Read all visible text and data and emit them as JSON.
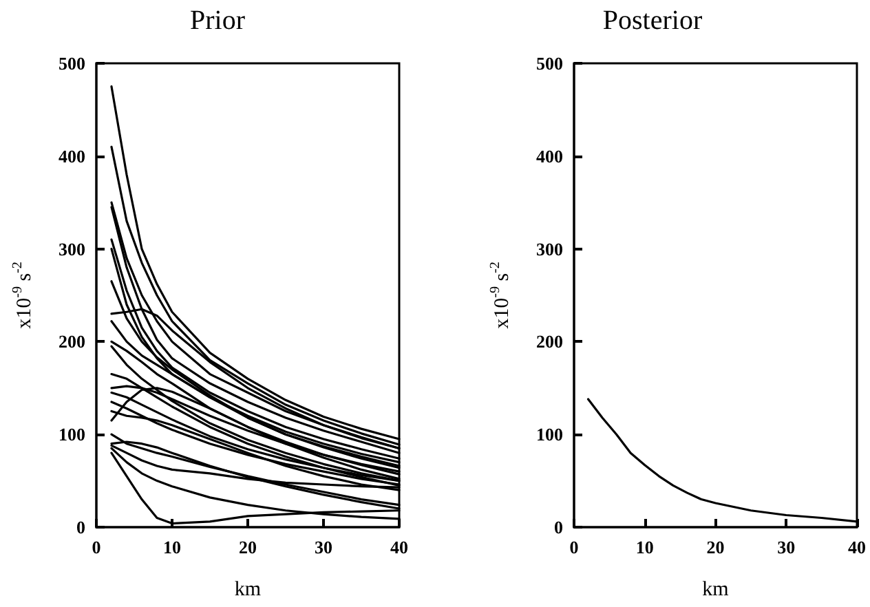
{
  "chart_data": [
    {
      "type": "line",
      "title": "Prior",
      "xlabel": "km",
      "ylabel": "x10$^{-9}$ s$^{-2}$",
      "xlim": [
        0,
        40
      ],
      "xticks": [
        0,
        10,
        20,
        30,
        40
      ],
      "ylim": [
        0,
        500
      ],
      "yticks": [
        0,
        100,
        200,
        300,
        400,
        500
      ],
      "grid": false,
      "marker": "none",
      "line_style": "solid",
      "x": [
        2,
        4,
        6,
        8,
        10,
        15,
        20,
        25,
        30,
        35,
        40
      ],
      "series": [
        {
          "color": "#000000",
          "values": [
            475,
            380,
            300,
            262,
            232,
            188,
            160,
            137,
            119,
            106,
            95
          ]
        },
        {
          "color": "#000000",
          "values": [
            410,
            330,
            285,
            250,
            222,
            180,
            155,
            132,
            115,
            101,
            89
          ]
        },
        {
          "color": "#000000",
          "values": [
            350,
            290,
            250,
            222,
            200,
            165,
            145,
            125,
            110,
            97,
            85
          ]
        },
        {
          "color": "#000000",
          "values": [
            345,
            280,
            235,
            202,
            182,
            155,
            135,
            118,
            104,
            92,
            80
          ]
        },
        {
          "color": "#000000",
          "values": [
            310,
            255,
            215,
            190,
            172,
            145,
            125,
            108,
            95,
            84,
            74
          ]
        },
        {
          "color": "#000000",
          "values": [
            300,
            240,
            205,
            182,
            165,
            140,
            120,
            103,
            90,
            79,
            70
          ]
        },
        {
          "color": "#000000",
          "values": [
            265,
            225,
            200,
            183,
            170,
            142,
            118,
            100,
            87,
            76,
            66
          ]
        },
        {
          "color": "#000000",
          "values": [
            230,
            232,
            235,
            228,
            212,
            178,
            150,
            128,
            110,
            96,
            85
          ]
        },
        {
          "color": "#000000",
          "values": [
            222,
            200,
            185,
            175,
            165,
            140,
            118,
            100,
            86,
            74,
            64
          ]
        },
        {
          "color": "#000000",
          "values": [
            200,
            190,
            178,
            165,
            155,
            128,
            108,
            92,
            78,
            67,
            57
          ]
        },
        {
          "color": "#000000",
          "values": [
            195,
            175,
            160,
            148,
            136,
            112,
            94,
            80,
            68,
            58,
            50
          ]
        },
        {
          "color": "#000000",
          "values": [
            165,
            160,
            150,
            140,
            130,
            108,
            90,
            76,
            64,
            54,
            45
          ]
        },
        {
          "color": "#000000",
          "values": [
            150,
            152,
            150,
            145,
            138,
            120,
            104,
            90,
            78,
            68,
            60
          ]
        },
        {
          "color": "#000000",
          "values": [
            145,
            140,
            132,
            124,
            116,
            98,
            84,
            73,
            64,
            56,
            50
          ]
        },
        {
          "color": "#000000",
          "values": [
            135,
            128,
            120,
            112,
            105,
            90,
            78,
            68,
            60,
            52,
            46
          ]
        },
        {
          "color": "#000000",
          "values": [
            115,
            135,
            148,
            150,
            146,
            128,
            108,
            90,
            75,
            62,
            52
          ]
        },
        {
          "color": "#000000",
          "values": [
            125,
            120,
            118,
            115,
            110,
            95,
            80,
            66,
            55,
            46,
            40
          ]
        },
        {
          "color": "#000000",
          "values": [
            100,
            90,
            85,
            80,
            76,
            65,
            55,
            46,
            38,
            30,
            24
          ]
        },
        {
          "color": "#000000",
          "values": [
            90,
            92,
            90,
            86,
            80,
            66,
            54,
            44,
            35,
            27,
            20
          ]
        },
        {
          "color": "#000000",
          "values": [
            88,
            80,
            72,
            66,
            62,
            58,
            52,
            48,
            46,
            44,
            43
          ]
        },
        {
          "color": "#000000",
          "values": [
            80,
            55,
            30,
            10,
            4,
            6,
            12,
            14,
            16,
            17,
            18
          ]
        },
        {
          "color": "#000000",
          "values": [
            85,
            70,
            58,
            50,
            44,
            32,
            24,
            18,
            14,
            11,
            9
          ]
        }
      ]
    },
    {
      "type": "line",
      "title": "Posterior",
      "xlabel": "km",
      "ylabel": "x10$^{-9}$ s$^{-2}$",
      "xlim": [
        0,
        40
      ],
      "xticks": [
        0,
        10,
        20,
        30,
        40
      ],
      "ylim": [
        0,
        500
      ],
      "yticks": [
        0,
        100,
        200,
        300,
        400,
        500
      ],
      "grid": false,
      "marker": "none",
      "line_style": "solid",
      "series": [
        {
          "color": "#000000",
          "x": [
            2,
            4,
            6,
            8,
            10,
            12,
            14,
            16,
            18,
            20,
            25,
            30,
            35,
            40
          ],
          "values": [
            138,
            118,
            100,
            80,
            67,
            55,
            45,
            37,
            30,
            26,
            18,
            13,
            10,
            6
          ]
        }
      ]
    }
  ]
}
